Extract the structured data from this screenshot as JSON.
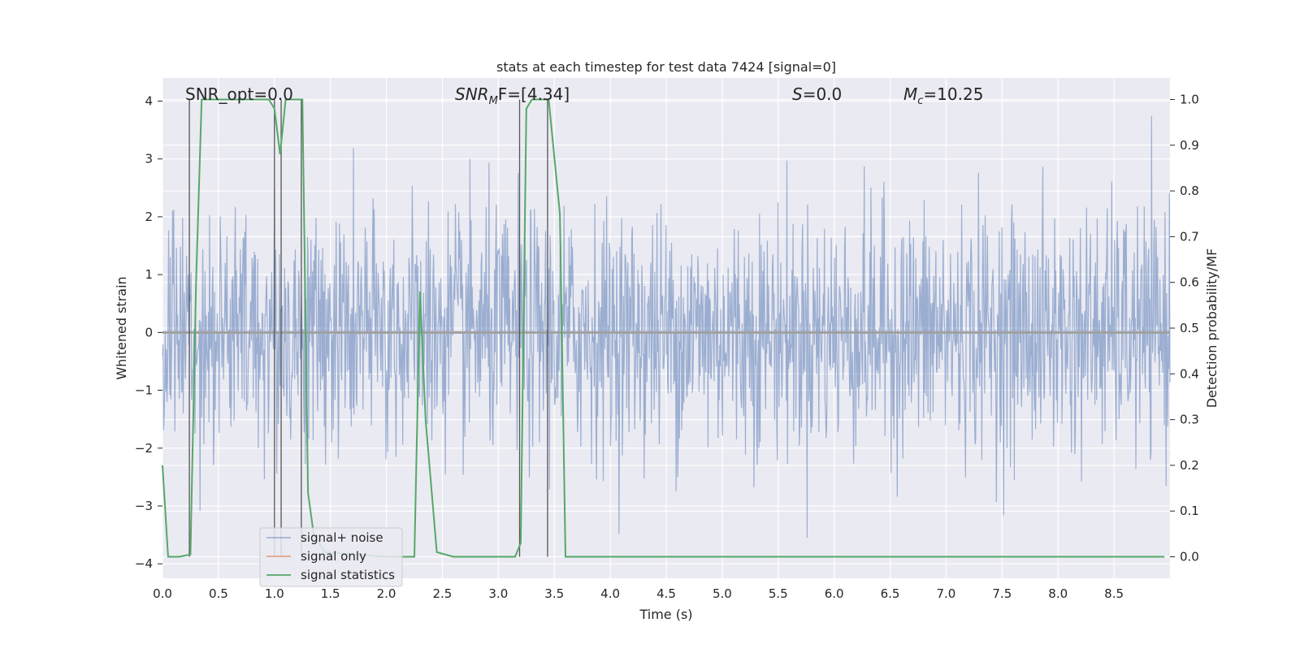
{
  "chart_data": {
    "type": "line",
    "title": "stats at each timestep for test data 7424 [signal=0]",
    "xlabel": "Time (s)",
    "ylabel": "Whitened strain",
    "y2label": "Detection probability/MF",
    "xlim": [
      0,
      9.0
    ],
    "ylim": [
      -4.25,
      4.4
    ],
    "y2lim": [
      -0.047,
      1.047
    ],
    "x_ticks": [
      "0.0",
      "0.5",
      "1.0",
      "1.5",
      "2.0",
      "2.5",
      "3.0",
      "3.5",
      "4.0",
      "4.5",
      "5.0",
      "5.5",
      "6.0",
      "6.5",
      "7.0",
      "7.5",
      "8.0",
      "8.5"
    ],
    "y_ticks": [
      "4",
      "3",
      "2",
      "1",
      "0",
      "−1",
      "−2",
      "−3",
      "−4"
    ],
    "y2_ticks": [
      "1.0",
      "0.9",
      "0.8",
      "0.7",
      "0.6",
      "0.5",
      "0.4",
      "0.3",
      "0.2",
      "0.1",
      "0.0"
    ],
    "grid": true,
    "legend_position": "lower-left",
    "annotations": {
      "snr_opt": "SNR_opt=0.0",
      "snr_mf_main": "SNR",
      "snr_mf_sub": "M",
      "snr_mf_tail": "F=[4.34]",
      "s_italic": "S",
      "s_value": "=0.0",
      "mc_main": "M",
      "mc_sub": "c",
      "mc_value": "=10.25"
    },
    "series": [
      {
        "name": "signal+ noise",
        "color": "#4c72b0",
        "axis": "left",
        "sample_count": 1800,
        "description_range": [
          -3.8,
          3.6
        ]
      },
      {
        "name": "signal only",
        "color": "#dd8452",
        "axis": "left",
        "x": [
          0,
          9.0
        ],
        "y": [
          0,
          0
        ]
      },
      {
        "name": "signal statistics",
        "color": "#55a868",
        "axis": "right",
        "x": [
          0.0,
          0.05,
          0.15,
          0.25,
          0.3,
          0.35,
          0.95,
          1.0,
          1.05,
          1.1,
          1.2,
          1.25,
          1.3,
          1.35,
          1.45,
          2.0,
          2.25,
          2.3,
          2.35,
          2.45,
          2.6,
          3.0,
          3.15,
          3.2,
          3.25,
          3.3,
          3.45,
          3.55,
          3.6,
          3.7,
          3.9,
          4.0,
          8.95
        ],
        "y": [
          0.2,
          0.0,
          0.0,
          0.005,
          0.6,
          1.0,
          1.0,
          0.98,
          0.88,
          1.0,
          1.0,
          1.0,
          0.14,
          0.05,
          0.01,
          0.0,
          0.0,
          0.58,
          0.3,
          0.01,
          0.0,
          0.0,
          0.0,
          0.03,
          0.98,
          1.0,
          1.0,
          0.75,
          0.0,
          0.0,
          0.0,
          0.0,
          0.0
        ]
      }
    ],
    "vertical_markers": [
      0.24,
      1.0,
      1.06,
      1.24,
      3.19,
      3.44
    ]
  }
}
